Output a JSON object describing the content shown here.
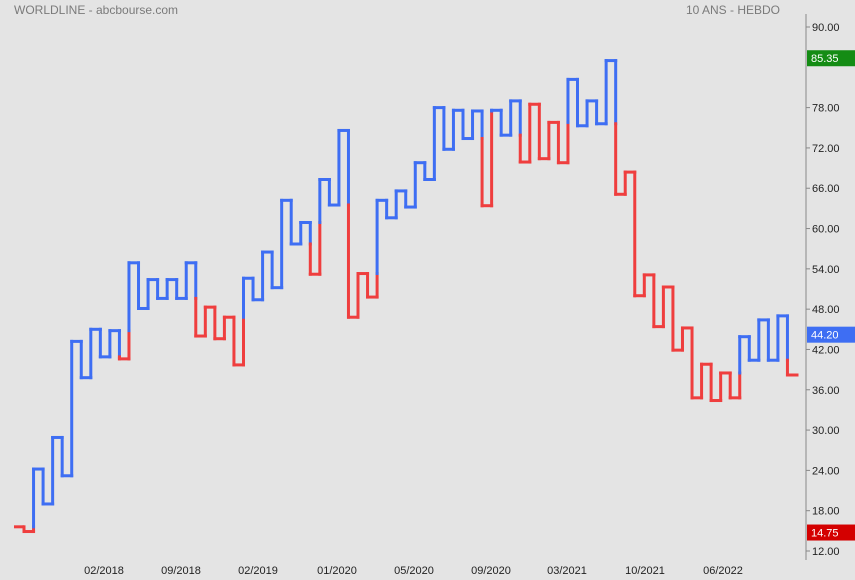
{
  "header": {
    "title": "WORLDLINE - abcbourse.com",
    "period": "10 ANS - HEBDO"
  },
  "chart_data": {
    "type": "line",
    "style": "kagi",
    "ylim": [
      12,
      90
    ],
    "y_ticks": [
      "12.00",
      "18.00",
      "24.00",
      "30.00",
      "36.00",
      "42.00",
      "48.00",
      "54.00",
      "60.00",
      "66.00",
      "72.00",
      "78.00",
      "85.35",
      "90.00"
    ],
    "x_ticks": [
      "02/2018",
      "09/2018",
      "02/2019",
      "01/2020",
      "05/2020",
      "09/2020",
      "03/2021",
      "10/2021",
      "06/2022"
    ],
    "kagi_levels": [
      15.6,
      14.9,
      24.2,
      19.0,
      28.9,
      23.2,
      43.2,
      37.8,
      45.0,
      40.9,
      44.8,
      40.6,
      54.9,
      48.1,
      52.4,
      49.6,
      52.4,
      49.6,
      54.9,
      44.0,
      48.3,
      43.6,
      46.8,
      39.7,
      52.6,
      49.4,
      56.5,
      51.2,
      64.2,
      57.7,
      60.9,
      53.2,
      67.3,
      63.5,
      74.6,
      46.8,
      53.3,
      49.8,
      64.2,
      61.6,
      65.6,
      63.2,
      69.8,
      67.3,
      78.0,
      71.8,
      77.6,
      73.4,
      77.5,
      63.4,
      77.6,
      73.9,
      79.0,
      69.9,
      78.5,
      70.4,
      75.8,
      69.8,
      82.2,
      75.3,
      79.0,
      75.6,
      85.0,
      65.1,
      68.4,
      50.0,
      53.1,
      45.4,
      51.3,
      41.9,
      45.2,
      34.8,
      39.8,
      34.4,
      38.5,
      34.8,
      43.9,
      40.4,
      46.4,
      40.4,
      47.0,
      38.2
    ],
    "colors": {
      "up": "#3e6ef3",
      "down": "#ef3e3e"
    },
    "tags": [
      {
        "label": "85.35",
        "value": 85.35,
        "color": "#148c14"
      },
      {
        "label": "44.20",
        "value": 44.2,
        "color": "#3e6ef3"
      },
      {
        "label": "14.75",
        "value": 14.75,
        "color": "#d40000"
      }
    ]
  }
}
